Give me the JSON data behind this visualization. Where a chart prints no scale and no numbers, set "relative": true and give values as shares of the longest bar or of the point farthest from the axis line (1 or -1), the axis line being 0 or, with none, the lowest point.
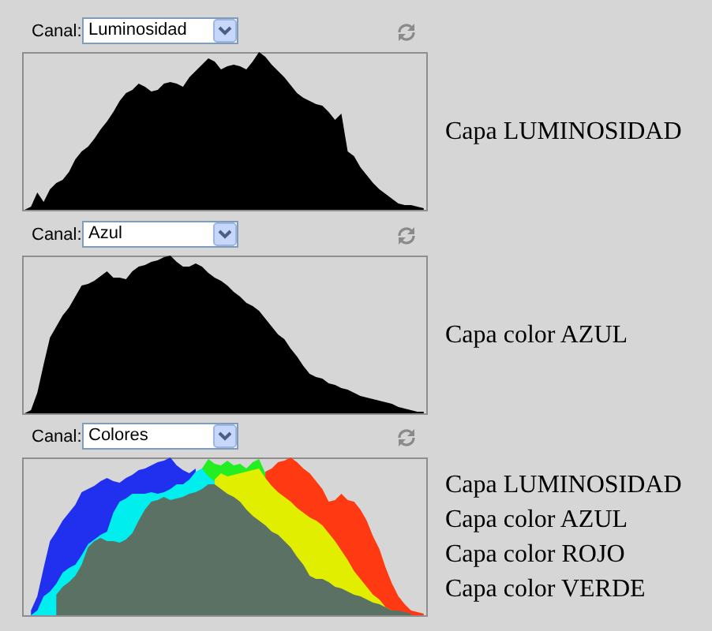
{
  "chart_data": [
    {
      "type": "area",
      "relative": true,
      "annotations": [
        "Canal:",
        "Luminosidad",
        "Capa LUMINOSIDAD"
      ],
      "categories": [
        null,
        null,
        null,
        null,
        null,
        null,
        null,
        null,
        null,
        null,
        null,
        null,
        null,
        null,
        null,
        null,
        null,
        null,
        null,
        null,
        null,
        null,
        null,
        null,
        null,
        null,
        null,
        null,
        null,
        null,
        null,
        null,
        null,
        null,
        null,
        null,
        null,
        null,
        null,
        null,
        null,
        null,
        null,
        null,
        null,
        null,
        null,
        null,
        null,
        null,
        null,
        null,
        null,
        null,
        null,
        null,
        null,
        null,
        null,
        null,
        null,
        null,
        null,
        null
      ],
      "series": [
        {
          "color": "#000000",
          "values": [
            0,
            0.02,
            0.11,
            0.05,
            0.13,
            0.17,
            0.19,
            0.24,
            0.32,
            0.37,
            0.4,
            0.45,
            0.51,
            0.56,
            0.62,
            0.69,
            0.74,
            0.76,
            0.8,
            0.78,
            0.75,
            0.76,
            0.8,
            0.81,
            0.8,
            0.78,
            0.84,
            0.88,
            0.92,
            0.96,
            0.94,
            0.89,
            0.91,
            0.92,
            0.91,
            0.89,
            0.94,
            1,
            0.97,
            0.92,
            0.88,
            0.84,
            0.79,
            0.74,
            0.71,
            0.69,
            0.67,
            0.66,
            0.62,
            0.57,
            0.61,
            0.37,
            0.34,
            0.27,
            0.22,
            0.17,
            0.13,
            0.1,
            0.07,
            0.04,
            0.03,
            0.03,
            0.02,
            0.01
          ]
        }
      ]
    },
    {
      "type": "area",
      "relative": true,
      "annotations": [
        "Canal:",
        "Azul",
        "Capa color AZUL"
      ],
      "categories": [
        null,
        null,
        null,
        null,
        null,
        null,
        null,
        null,
        null,
        null,
        null,
        null,
        null,
        null,
        null,
        null,
        null,
        null,
        null,
        null,
        null,
        null,
        null,
        null,
        null,
        null,
        null,
        null,
        null,
        null,
        null,
        null,
        null,
        null,
        null,
        null,
        null,
        null,
        null,
        null,
        null,
        null,
        null,
        null,
        null,
        null,
        null,
        null,
        null,
        null,
        null,
        null,
        null,
        null,
        null,
        null,
        null,
        null,
        null,
        null,
        null,
        null,
        null,
        null
      ],
      "series": [
        {
          "color": "#000000",
          "values": [
            0,
            0.02,
            0.13,
            0.31,
            0.48,
            0.55,
            0.62,
            0.67,
            0.74,
            0.81,
            0.82,
            0.84,
            0.87,
            0.9,
            0.86,
            0.86,
            0.85,
            0.9,
            0.93,
            0.94,
            0.96,
            0.97,
            0.99,
            1,
            0.96,
            0.93,
            0.93,
            0.95,
            0.93,
            0.89,
            0.86,
            0.84,
            0.81,
            0.77,
            0.74,
            0.7,
            0.68,
            0.65,
            0.6,
            0.55,
            0.5,
            0.47,
            0.41,
            0.36,
            0.3,
            0.25,
            0.23,
            0.22,
            0.19,
            0.18,
            0.16,
            0.15,
            0.13,
            0.11,
            0.1,
            0.09,
            0.08,
            0.07,
            0.06,
            0.04,
            0.03,
            0.02,
            0.01,
            0.01
          ]
        }
      ]
    },
    {
      "type": "area",
      "relative": true,
      "annotations": [
        "Canal:",
        "Colores",
        "Capa LUMINOSIDAD",
        "Capa color AZUL",
        "Capa color ROJO",
        "Capa color VERDE"
      ],
      "categories": [
        null,
        null,
        null,
        null,
        null,
        null,
        null,
        null,
        null,
        null,
        null,
        null,
        null,
        null,
        null,
        null,
        null,
        null,
        null,
        null,
        null,
        null,
        null,
        null,
        null,
        null,
        null,
        null,
        null,
        null,
        null,
        null,
        null,
        null,
        null,
        null,
        null,
        null,
        null,
        null,
        null,
        null,
        null,
        null,
        null,
        null,
        null,
        null,
        null,
        null,
        null,
        null,
        null,
        null,
        null,
        null,
        null,
        null,
        null,
        null,
        null,
        null,
        null,
        null
      ],
      "series": [
        {
          "color": "#2030ee",
          "values": [
            null,
            0.03,
            0.12,
            0.3,
            0.47,
            0.53,
            0.6,
            0.65,
            0.7,
            0.78,
            0.8,
            0.82,
            0.85,
            0.87,
            0.85,
            0.84,
            0.87,
            0.89,
            0.92,
            0.93,
            0.95,
            0.97,
            0.98,
            1,
            0.95,
            0.92,
            0.9,
            0.93,
            null,
            null,
            null,
            null,
            null,
            null,
            null,
            null,
            null,
            null,
            null,
            null,
            null,
            null,
            null,
            null,
            null,
            null,
            null,
            null,
            null,
            null,
            null,
            null,
            null,
            null,
            null,
            null,
            null,
            null,
            null,
            null,
            null,
            null,
            null,
            null
          ]
        },
        {
          "color": "#22ee22",
          "values": [
            null,
            null,
            null,
            null,
            null,
            null,
            null,
            null,
            null,
            null,
            null,
            null,
            null,
            null,
            null,
            null,
            null,
            null,
            null,
            null,
            null,
            null,
            null,
            null,
            null,
            null,
            null,
            null,
            0.93,
            0.99,
            0.96,
            0.95,
            0.98,
            0.95,
            0.96,
            0.93,
            0.97,
            0.99,
            0.9,
            null,
            null,
            null,
            null,
            null,
            null,
            null,
            null,
            null,
            null,
            null,
            null,
            null,
            null,
            null,
            null,
            null,
            null,
            null,
            null,
            null,
            null,
            null,
            null,
            null
          ]
        },
        {
          "color": "#ff3a12",
          "values": [
            null,
            null,
            null,
            null,
            null,
            null,
            null,
            null,
            null,
            null,
            null,
            null,
            null,
            null,
            null,
            null,
            null,
            null,
            null,
            null,
            null,
            null,
            null,
            null,
            null,
            null,
            null,
            null,
            null,
            null,
            null,
            null,
            null,
            null,
            null,
            null,
            null,
            null,
            0.91,
            0.93,
            0.97,
            0.98,
            1,
            0.97,
            0.93,
            0.9,
            0.85,
            0.8,
            0.72,
            0.73,
            0.77,
            0.73,
            0.72,
            0.67,
            0.6,
            0.5,
            0.42,
            0.3,
            0.2,
            0.12,
            0.07,
            0.03,
            0.02,
            0.01
          ]
        },
        {
          "color": "#00eeee",
          "values": [
            null,
            0,
            0.03,
            0.12,
            0.15,
            0.2,
            0.27,
            0.3,
            0.32,
            0.38,
            0.45,
            0.48,
            0.51,
            0.53,
            0.65,
            0.72,
            0.74,
            0.77,
            0.77,
            0.77,
            0.78,
            0.77,
            0.78,
            0.8,
            0.83,
            0.83,
            0.86,
            0.91,
            0.93,
            0.88,
            0.85,
            null,
            null,
            null,
            null,
            null,
            null,
            null,
            null,
            null,
            null,
            null,
            null,
            null,
            null,
            null,
            null,
            null,
            null,
            null,
            null,
            null,
            null,
            null,
            null,
            null,
            null,
            null,
            null,
            null,
            null,
            null,
            null,
            null
          ]
        },
        {
          "color": "#e2ee00",
          "values": [
            null,
            null,
            null,
            null,
            null,
            null,
            null,
            null,
            null,
            null,
            null,
            null,
            null,
            null,
            null,
            null,
            null,
            null,
            null,
            null,
            null,
            null,
            null,
            null,
            null,
            null,
            null,
            null,
            null,
            null,
            0.86,
            0.9,
            0.88,
            0.89,
            0.9,
            0.91,
            0.92,
            0.93,
            0.87,
            0.82,
            0.78,
            0.75,
            0.72,
            0.68,
            0.65,
            0.62,
            0.6,
            0.57,
            0.52,
            0.47,
            0.41,
            0.35,
            0.28,
            0.23,
            0.18,
            0.13,
            0.1,
            0.05,
            0.03,
            null,
            null,
            null,
            null,
            null
          ]
        },
        {
          "color": "#5b7163",
          "values": [
            null,
            null,
            null,
            null,
            null,
            0.13,
            0.18,
            0.21,
            0.25,
            0.32,
            0.43,
            0.47,
            0.49,
            0.47,
            0.47,
            0.46,
            0.48,
            0.52,
            0.6,
            0.67,
            0.72,
            0.73,
            0.75,
            0.73,
            0.74,
            0.75,
            0.77,
            0.78,
            0.8,
            0.83,
            0.83,
            0.8,
            0.77,
            0.75,
            0.72,
            0.67,
            0.63,
            0.6,
            0.57,
            0.53,
            0.51,
            0.47,
            0.43,
            0.37,
            0.32,
            0.25,
            0.23,
            0.23,
            0.21,
            0.18,
            0.17,
            0.15,
            0.13,
            0.12,
            0.1,
            0.08,
            0.07,
            0.05,
            0.03,
            0.03,
            0.02,
            0.01,
            null,
            null
          ]
        }
      ]
    }
  ]
}
